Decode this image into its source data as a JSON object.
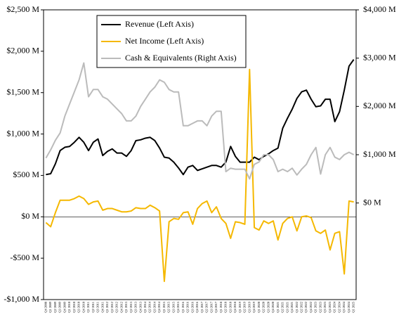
{
  "chart_data": {
    "type": "line",
    "categories": [
      "Q4 2008",
      "Q1 2009",
      "Q2 2009",
      "Q3 2009",
      "Q4 2009",
      "Q1 2010",
      "Q2 2010",
      "Q3 2010",
      "Q4 2010",
      "Q1 2011",
      "Q2 2011",
      "Q3 2011",
      "Q4 2011",
      "Q1 2012",
      "Q2 2012",
      "Q3 2012",
      "Q4 2012",
      "Q1 2013",
      "Q2 2013",
      "Q3 2013",
      "Q4 2013",
      "Q1 2014",
      "Q2 2014",
      "Q3 2014",
      "Q4 2014",
      "Q1 2015",
      "Q2 2015",
      "Q3 2015",
      "Q4 2015",
      "Q1 2016",
      "Q2 2016",
      "Q3 2016",
      "Q4 2016",
      "Q1 2017",
      "Q2 2017",
      "Q3 2017",
      "Q4 2017",
      "Q1 2018",
      "Q2 2018",
      "Q3 2018",
      "Q4 2018",
      "Q1 2019",
      "Q2 2019",
      "Q3 2019",
      "Q4 2019",
      "Q1 2020",
      "Q2 2020",
      "Q3 2020",
      "Q4 2020",
      "Q1 2021",
      "Q2 2021",
      "Q3 2021",
      "Q4 2021",
      "Q1 2022",
      "Q2 2022",
      "Q3 2022",
      "Q4 2022",
      "Q1 2023",
      "Q2 2023",
      "Q3 2023",
      "Q4 2023",
      "Q1 2024",
      "Q2 2024",
      "Q3 2024",
      "Q4 2024",
      "Q1 2025"
    ],
    "series": [
      {
        "name": "Revenue (Left Axis)",
        "color": "#000000",
        "values": [
          510,
          520,
          640,
          800,
          840,
          850,
          900,
          960,
          900,
          800,
          900,
          940,
          740,
          790,
          820,
          770,
          770,
          730,
          800,
          920,
          930,
          950,
          960,
          920,
          830,
          720,
          710,
          660,
          590,
          510,
          600,
          620,
          560,
          580,
          600,
          620,
          620,
          600,
          660,
          850,
          730,
          660,
          660,
          660,
          720,
          690,
          730,
          760,
          800,
          830,
          1070,
          1190,
          1300,
          1430,
          1510,
          1530,
          1420,
          1330,
          1340,
          1420,
          1420,
          1150,
          1270,
          1530,
          1820,
          1900
        ]
      },
      {
        "name": "Net Income (Left Axis)",
        "color": "#f5b800",
        "values": [
          -70,
          -120,
          50,
          200,
          200,
          200,
          220,
          250,
          220,
          150,
          180,
          190,
          80,
          100,
          100,
          80,
          60,
          60,
          70,
          110,
          100,
          100,
          140,
          110,
          70,
          -780,
          -60,
          -20,
          -30,
          50,
          60,
          -90,
          100,
          160,
          190,
          50,
          120,
          -20,
          -80,
          -260,
          -60,
          -70,
          -90,
          1780,
          -130,
          -160,
          -50,
          -80,
          -50,
          -280,
          -80,
          -20,
          0,
          -170,
          0,
          10,
          -10,
          -170,
          -200,
          -160,
          -400,
          -200,
          -180,
          -690,
          190,
          180
        ]
      },
      {
        "name": "Cash & Equivalents (Right Axis)",
        "color": "#bbbbbb",
        "axis": "y2",
        "values": [
          930,
          1100,
          1300,
          1450,
          1800,
          2050,
          2300,
          2550,
          2900,
          2200,
          2350,
          2350,
          2200,
          2150,
          2050,
          1950,
          1850,
          1700,
          1700,
          1800,
          2000,
          2150,
          2300,
          2400,
          2550,
          2500,
          2350,
          2300,
          2300,
          1600,
          1600,
          1650,
          1700,
          1700,
          1600,
          1800,
          1900,
          1900,
          650,
          720,
          700,
          700,
          700,
          500,
          800,
          850,
          1000,
          1000,
          900,
          650,
          700,
          650,
          720,
          580,
          700,
          800,
          1000,
          1150,
          600,
          1000,
          1150,
          950,
          900,
          1000,
          1050,
          1000
        ]
      }
    ],
    "ylim": [
      -1000,
      2500
    ],
    "yticks": [
      {
        "value": -1000,
        "label": "-$1,000 M"
      },
      {
        "value": -500,
        "label": "-$500 M"
      },
      {
        "value": 0,
        "label": "$0 M"
      },
      {
        "value": 500,
        "label": "$500 M"
      },
      {
        "value": 1000,
        "label": "$1,000 M"
      },
      {
        "value": 1500,
        "label": "$1,500 M"
      },
      {
        "value": 2000,
        "label": "$2,000 M"
      },
      {
        "value": 2500,
        "label": "$2,500 M"
      }
    ],
    "y2lim": [
      -2000,
      4000
    ],
    "y2ticks": [
      {
        "value": 0,
        "label": "$0 M"
      },
      {
        "value": 1000,
        "label": "$1,000 M"
      },
      {
        "value": 2000,
        "label": "$2,000 M"
      },
      {
        "value": 3000,
        "label": "$3,000 M"
      },
      {
        "value": 4000,
        "label": "$4,000 M"
      }
    ],
    "legend": "upper left"
  }
}
